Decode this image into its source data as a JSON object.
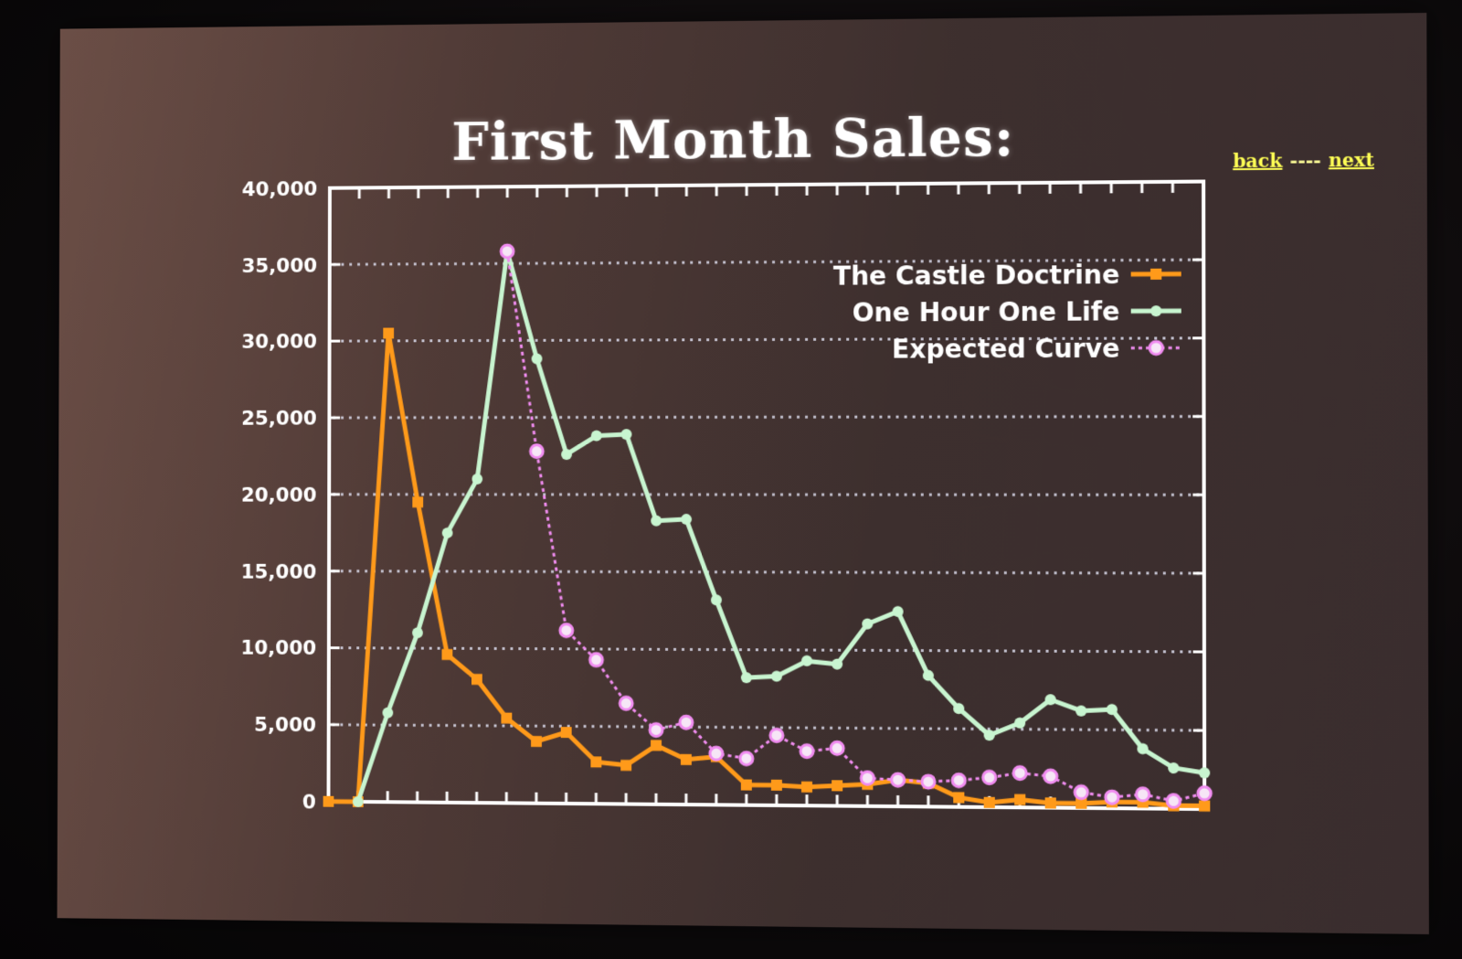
{
  "slide": {
    "title": "First Month Sales:",
    "nav_back": "back",
    "nav_separator": "----",
    "nav_next": "next"
  },
  "colors": {
    "castle": "#ff9a1a",
    "ohol": "#c8f5d0",
    "expected": "#f08cf0",
    "axis": "#ffffff",
    "grid": "#d8d8e8"
  },
  "chart_data": {
    "type": "line",
    "title": "First Month Sales:",
    "xlabel": "",
    "ylabel": "",
    "ylim": [
      0,
      40000
    ],
    "xlim": [
      1,
      30
    ],
    "y_ticks": [
      "0",
      "5,000",
      "10,000",
      "15,000",
      "20,000",
      "25,000",
      "30,000",
      "35,000",
      "40,000"
    ],
    "grid": true,
    "legend_position": "top-right",
    "series": [
      {
        "name": "The Castle Doctrine",
        "style": "solid-square",
        "x": [
          1,
          2,
          3,
          4,
          5,
          6,
          7,
          8,
          9,
          10,
          11,
          12,
          13,
          14,
          15,
          16,
          17,
          18,
          19,
          20,
          21,
          22,
          23,
          24,
          25,
          26,
          27,
          28,
          29,
          30
        ],
        "values": [
          0,
          0,
          30500,
          19500,
          9600,
          8000,
          5500,
          4000,
          4600,
          2700,
          2500,
          3800,
          2900,
          3100,
          1300,
          1300,
          1200,
          1300,
          1400,
          1700,
          1500,
          600,
          300,
          500,
          300,
          300,
          400,
          400,
          200,
          200
        ]
      },
      {
        "name": "One Hour One Life",
        "style": "solid-circle",
        "x": [
          2,
          3,
          4,
          5,
          6,
          7,
          8,
          9,
          10,
          11,
          12,
          13,
          14,
          15,
          16,
          17,
          18,
          19,
          20,
          21,
          22,
          23,
          24,
          25,
          26,
          27,
          28,
          29,
          30
        ],
        "values": [
          0,
          5800,
          11000,
          17500,
          21000,
          35800,
          28800,
          22600,
          23800,
          23900,
          18300,
          18400,
          13200,
          8200,
          8300,
          9300,
          9100,
          11700,
          12500,
          8400,
          6300,
          4600,
          5400,
          6900,
          6200,
          6300,
          3800,
          2600,
          2300
        ]
      },
      {
        "name": "Expected Curve",
        "style": "dashed-open-circle",
        "x": [
          7,
          8,
          9,
          10,
          11,
          12,
          13,
          14,
          15,
          16,
          17,
          18,
          19,
          20,
          21,
          22,
          23,
          24,
          25,
          26,
          27,
          28,
          29,
          30
        ],
        "values": [
          35800,
          22800,
          11200,
          9300,
          6500,
          4800,
          5300,
          3300,
          3000,
          4500,
          3500,
          3700,
          1800,
          1700,
          1600,
          1700,
          1900,
          2200,
          2000,
          1000,
          700,
          900,
          500,
          1000
        ]
      }
    ]
  }
}
